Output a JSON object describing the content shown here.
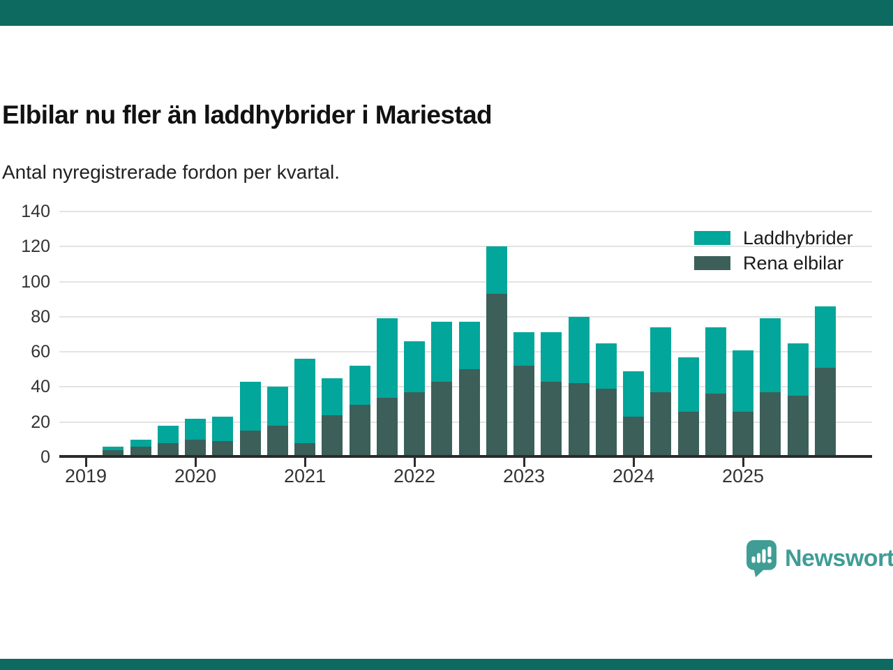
{
  "branding": {
    "logo_text": "Newsworthy",
    "logo_color": "#3F9D95",
    "strip_color": "#0C6A60"
  },
  "chart_data": {
    "type": "bar",
    "stacked": true,
    "title": "Elbilar nu fler än laddhybrider i Mariestad",
    "subtitle": "Antal nyregistrerade fordon per kvartal.",
    "xlabel": "",
    "ylabel": "",
    "ylim": [
      0,
      140
    ],
    "yticks": [
      0,
      20,
      40,
      60,
      80,
      100,
      120,
      140
    ],
    "grid": "horizontal",
    "legend_position": "top-right",
    "year_labels": [
      "2019",
      "2020",
      "2021",
      "2022",
      "2023",
      "2024",
      "2025"
    ],
    "categories": [
      "2019 Q2",
      "2019 Q3",
      "2019 Q4",
      "2020 Q1",
      "2020 Q2",
      "2020 Q3",
      "2020 Q4",
      "2021 Q1",
      "2021 Q2",
      "2021 Q3",
      "2021 Q4",
      "2022 Q1",
      "2022 Q2",
      "2022 Q3",
      "2022 Q4",
      "2023 Q1",
      "2023 Q2",
      "2023 Q3",
      "2023 Q4",
      "2024 Q1",
      "2024 Q2",
      "2024 Q3",
      "2024 Q4",
      "2025 Q1",
      "2025 Q2",
      "2025 Q3",
      "2025 Q4"
    ],
    "series": [
      {
        "name": "Laddhybrider",
        "color": "#02A69B",
        "stack_order": "top",
        "values": [
          2,
          4,
          10,
          12,
          14,
          28,
          22,
          48,
          21,
          22,
          45,
          29,
          34,
          27,
          27,
          19,
          28,
          38,
          26,
          26,
          37,
          31,
          38,
          35,
          42,
          30,
          35
        ]
      },
      {
        "name": "Rena elbilar",
        "color": "#3C5F59",
        "stack_order": "bottom",
        "values": [
          4,
          6,
          8,
          10,
          9,
          15,
          18,
          8,
          24,
          30,
          34,
          37,
          43,
          50,
          93,
          52,
          43,
          42,
          39,
          23,
          37,
          26,
          36,
          26,
          37,
          35,
          51
        ]
      }
    ],
    "totals": [
      6,
      10,
      18,
      22,
      23,
      43,
      40,
      56,
      45,
      52,
      79,
      66,
      77,
      77,
      120,
      71,
      71,
      80,
      65,
      49,
      74,
      57,
      74,
      61,
      79,
      65,
      86
    ]
  }
}
